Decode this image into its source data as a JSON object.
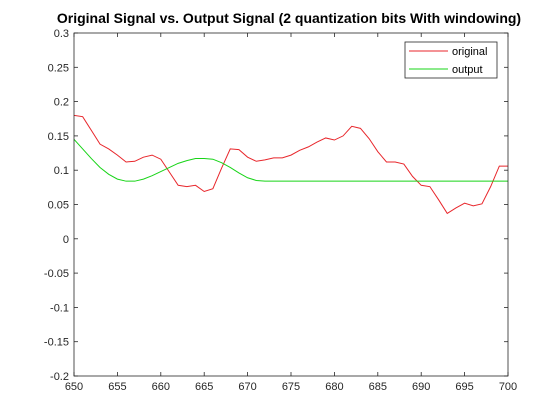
{
  "chart_data": {
    "type": "line",
    "title": "Original Signal vs. Output Signal (2 quantization bits With windowing)",
    "xlabel": "",
    "ylabel": "",
    "xlim": [
      650,
      700
    ],
    "ylim": [
      -0.2,
      0.3
    ],
    "xticks": [
      650,
      655,
      660,
      665,
      670,
      675,
      680,
      685,
      690,
      695,
      700
    ],
    "yticks": [
      -0.2,
      -0.15,
      -0.1,
      -0.05,
      0,
      0.05,
      0.1,
      0.15,
      0.2,
      0.25,
      0.3
    ],
    "xtick_labels": [
      "650",
      "655",
      "660",
      "665",
      "670",
      "675",
      "680",
      "685",
      "690",
      "695",
      "700"
    ],
    "ytick_labels": [
      "-0.2",
      "-0.15",
      "-0.1",
      "-0.05",
      "0",
      "0.05",
      "0.1",
      "0.15",
      "0.2",
      "0.25",
      "0.3"
    ],
    "grid": false,
    "legend_position": "top-right",
    "series": [
      {
        "name": "original",
        "color": "#e8262b",
        "x": [
          650,
          651,
          652,
          653,
          654,
          655,
          656,
          657,
          658,
          659,
          660,
          661,
          662,
          663,
          664,
          665,
          666,
          667,
          668,
          669,
          670,
          671,
          672,
          673,
          674,
          675,
          676,
          677,
          678,
          679,
          680,
          681,
          682,
          683,
          684,
          685,
          686,
          687,
          688,
          689,
          690,
          691,
          692,
          693,
          694,
          695,
          696,
          697,
          698,
          699,
          700
        ],
        "values": [
          0.18,
          0.178,
          0.158,
          0.138,
          0.131,
          0.122,
          0.112,
          0.113,
          0.119,
          0.122,
          0.116,
          0.097,
          0.078,
          0.076,
          0.078,
          0.069,
          0.073,
          0.103,
          0.131,
          0.13,
          0.119,
          0.113,
          0.115,
          0.118,
          0.118,
          0.122,
          0.129,
          0.134,
          0.141,
          0.147,
          0.144,
          0.15,
          0.164,
          0.161,
          0.146,
          0.127,
          0.112,
          0.112,
          0.109,
          0.091,
          0.078,
          0.076,
          0.057,
          0.037,
          0.045,
          0.052,
          0.048,
          0.051,
          0.076,
          0.106,
          0.106
        ]
      },
      {
        "name": "output",
        "color": "#17d417",
        "x": [
          650,
          651,
          652,
          653,
          654,
          655,
          656,
          657,
          658,
          659,
          660,
          661,
          662,
          663,
          664,
          665,
          666,
          667,
          668,
          669,
          670,
          671,
          672,
          673,
          674,
          675,
          676,
          677,
          678,
          679,
          680,
          681,
          682,
          683,
          684,
          685,
          686,
          687,
          688,
          689,
          690,
          691,
          692,
          693,
          694,
          695,
          696,
          697,
          698,
          699,
          700
        ],
        "values": [
          0.145,
          0.131,
          0.117,
          0.104,
          0.094,
          0.087,
          0.084,
          0.084,
          0.087,
          0.092,
          0.098,
          0.104,
          0.11,
          0.114,
          0.117,
          0.117,
          0.116,
          0.111,
          0.104,
          0.096,
          0.089,
          0.085,
          0.084,
          0.084,
          0.084,
          0.084,
          0.084,
          0.084,
          0.084,
          0.084,
          0.084,
          0.084,
          0.084,
          0.084,
          0.084,
          0.084,
          0.084,
          0.084,
          0.084,
          0.084,
          0.084,
          0.084,
          0.084,
          0.084,
          0.084,
          0.084,
          0.084,
          0.084,
          0.084,
          0.084,
          0.084
        ]
      }
    ]
  }
}
